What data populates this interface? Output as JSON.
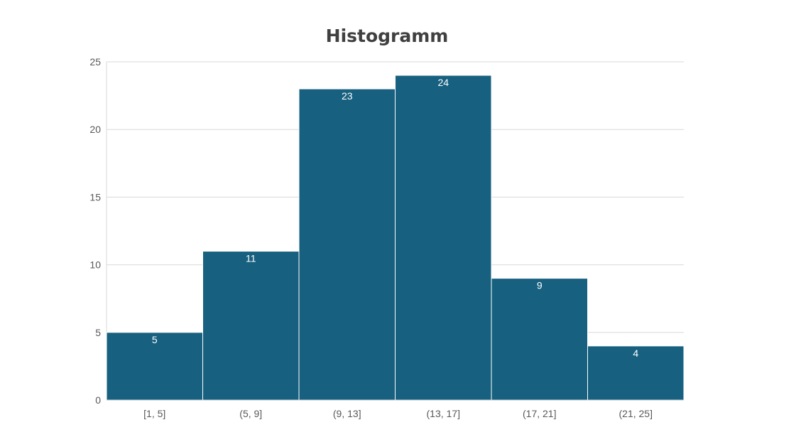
{
  "chart_data": {
    "type": "bar",
    "title": "Histogramm",
    "xlabel": "",
    "ylabel": "",
    "categories": [
      "[1, 5]",
      "(5, 9]",
      "(9, 13]",
      "(13, 17]",
      "(17, 21]",
      "(21, 25]"
    ],
    "values": [
      5,
      11,
      23,
      24,
      9,
      4
    ],
    "ylim": [
      0,
      25
    ],
    "yticks": [
      0,
      5,
      10,
      15,
      20,
      25
    ],
    "grid": true,
    "legend": "none",
    "bar_color": "#17607f",
    "gridline_color": "#d9d9d9",
    "data_label_color": "#ffffff"
  }
}
